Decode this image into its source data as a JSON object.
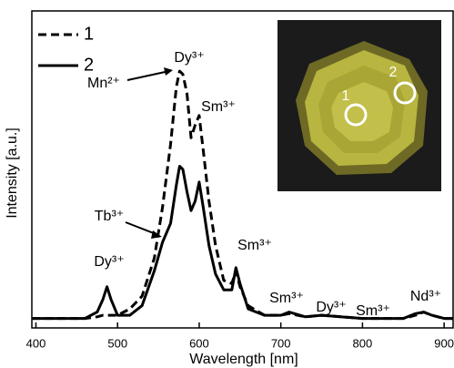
{
  "chart_data": {
    "type": "line",
    "x_label": "Wavelength [nm]",
    "y_label": "Intensity [a.u.]",
    "xlim": [
      395,
      911
    ],
    "ylim": [
      0,
      100
    ],
    "xticks": [
      400,
      500,
      600,
      700,
      800,
      900
    ],
    "x": [
      395,
      430,
      460,
      475,
      482,
      487,
      492,
      500,
      515,
      530,
      545,
      555,
      565,
      572,
      576,
      580,
      585,
      590,
      595,
      600,
      605,
      612,
      620,
      630,
      640,
      645,
      650,
      660,
      680,
      700,
      710,
      730,
      750,
      800,
      850,
      865,
      875,
      885,
      900,
      911
    ],
    "series": [
      {
        "name": "1",
        "color": "#000",
        "dash": true,
        "values": [
          3,
          3,
          3,
          3.5,
          4,
          4,
          4,
          4,
          6,
          10,
          22,
          38,
          58,
          76,
          81,
          80,
          74,
          60,
          64,
          67,
          56,
          40,
          26,
          15,
          14,
          18,
          13,
          7,
          4,
          4,
          4.5,
          3.5,
          4,
          3,
          3,
          4,
          5,
          4,
          3,
          3
        ]
      },
      {
        "name": "2",
        "color": "#000",
        "dash": false,
        "values": [
          3,
          3,
          3,
          5,
          9,
          13,
          9,
          4,
          4,
          7,
          18,
          27,
          33,
          45,
          51,
          50,
          43,
          37,
          40,
          46,
          38,
          26,
          17,
          12,
          12,
          19,
          14,
          6,
          4,
          4,
          5,
          3.5,
          4,
          3,
          3,
          4.5,
          5,
          4,
          3,
          3
        ]
      }
    ],
    "annotations": [
      "Dy³⁺",
      "Mn²⁺",
      "Sm³⁺",
      "Tb³⁺",
      "Dy³⁺",
      "Sm³⁺",
      "Sm³⁺",
      "Dy³⁺",
      "Sm³⁺",
      "Nd³⁺"
    ],
    "inset_labels": [
      "1",
      "2"
    ]
  }
}
